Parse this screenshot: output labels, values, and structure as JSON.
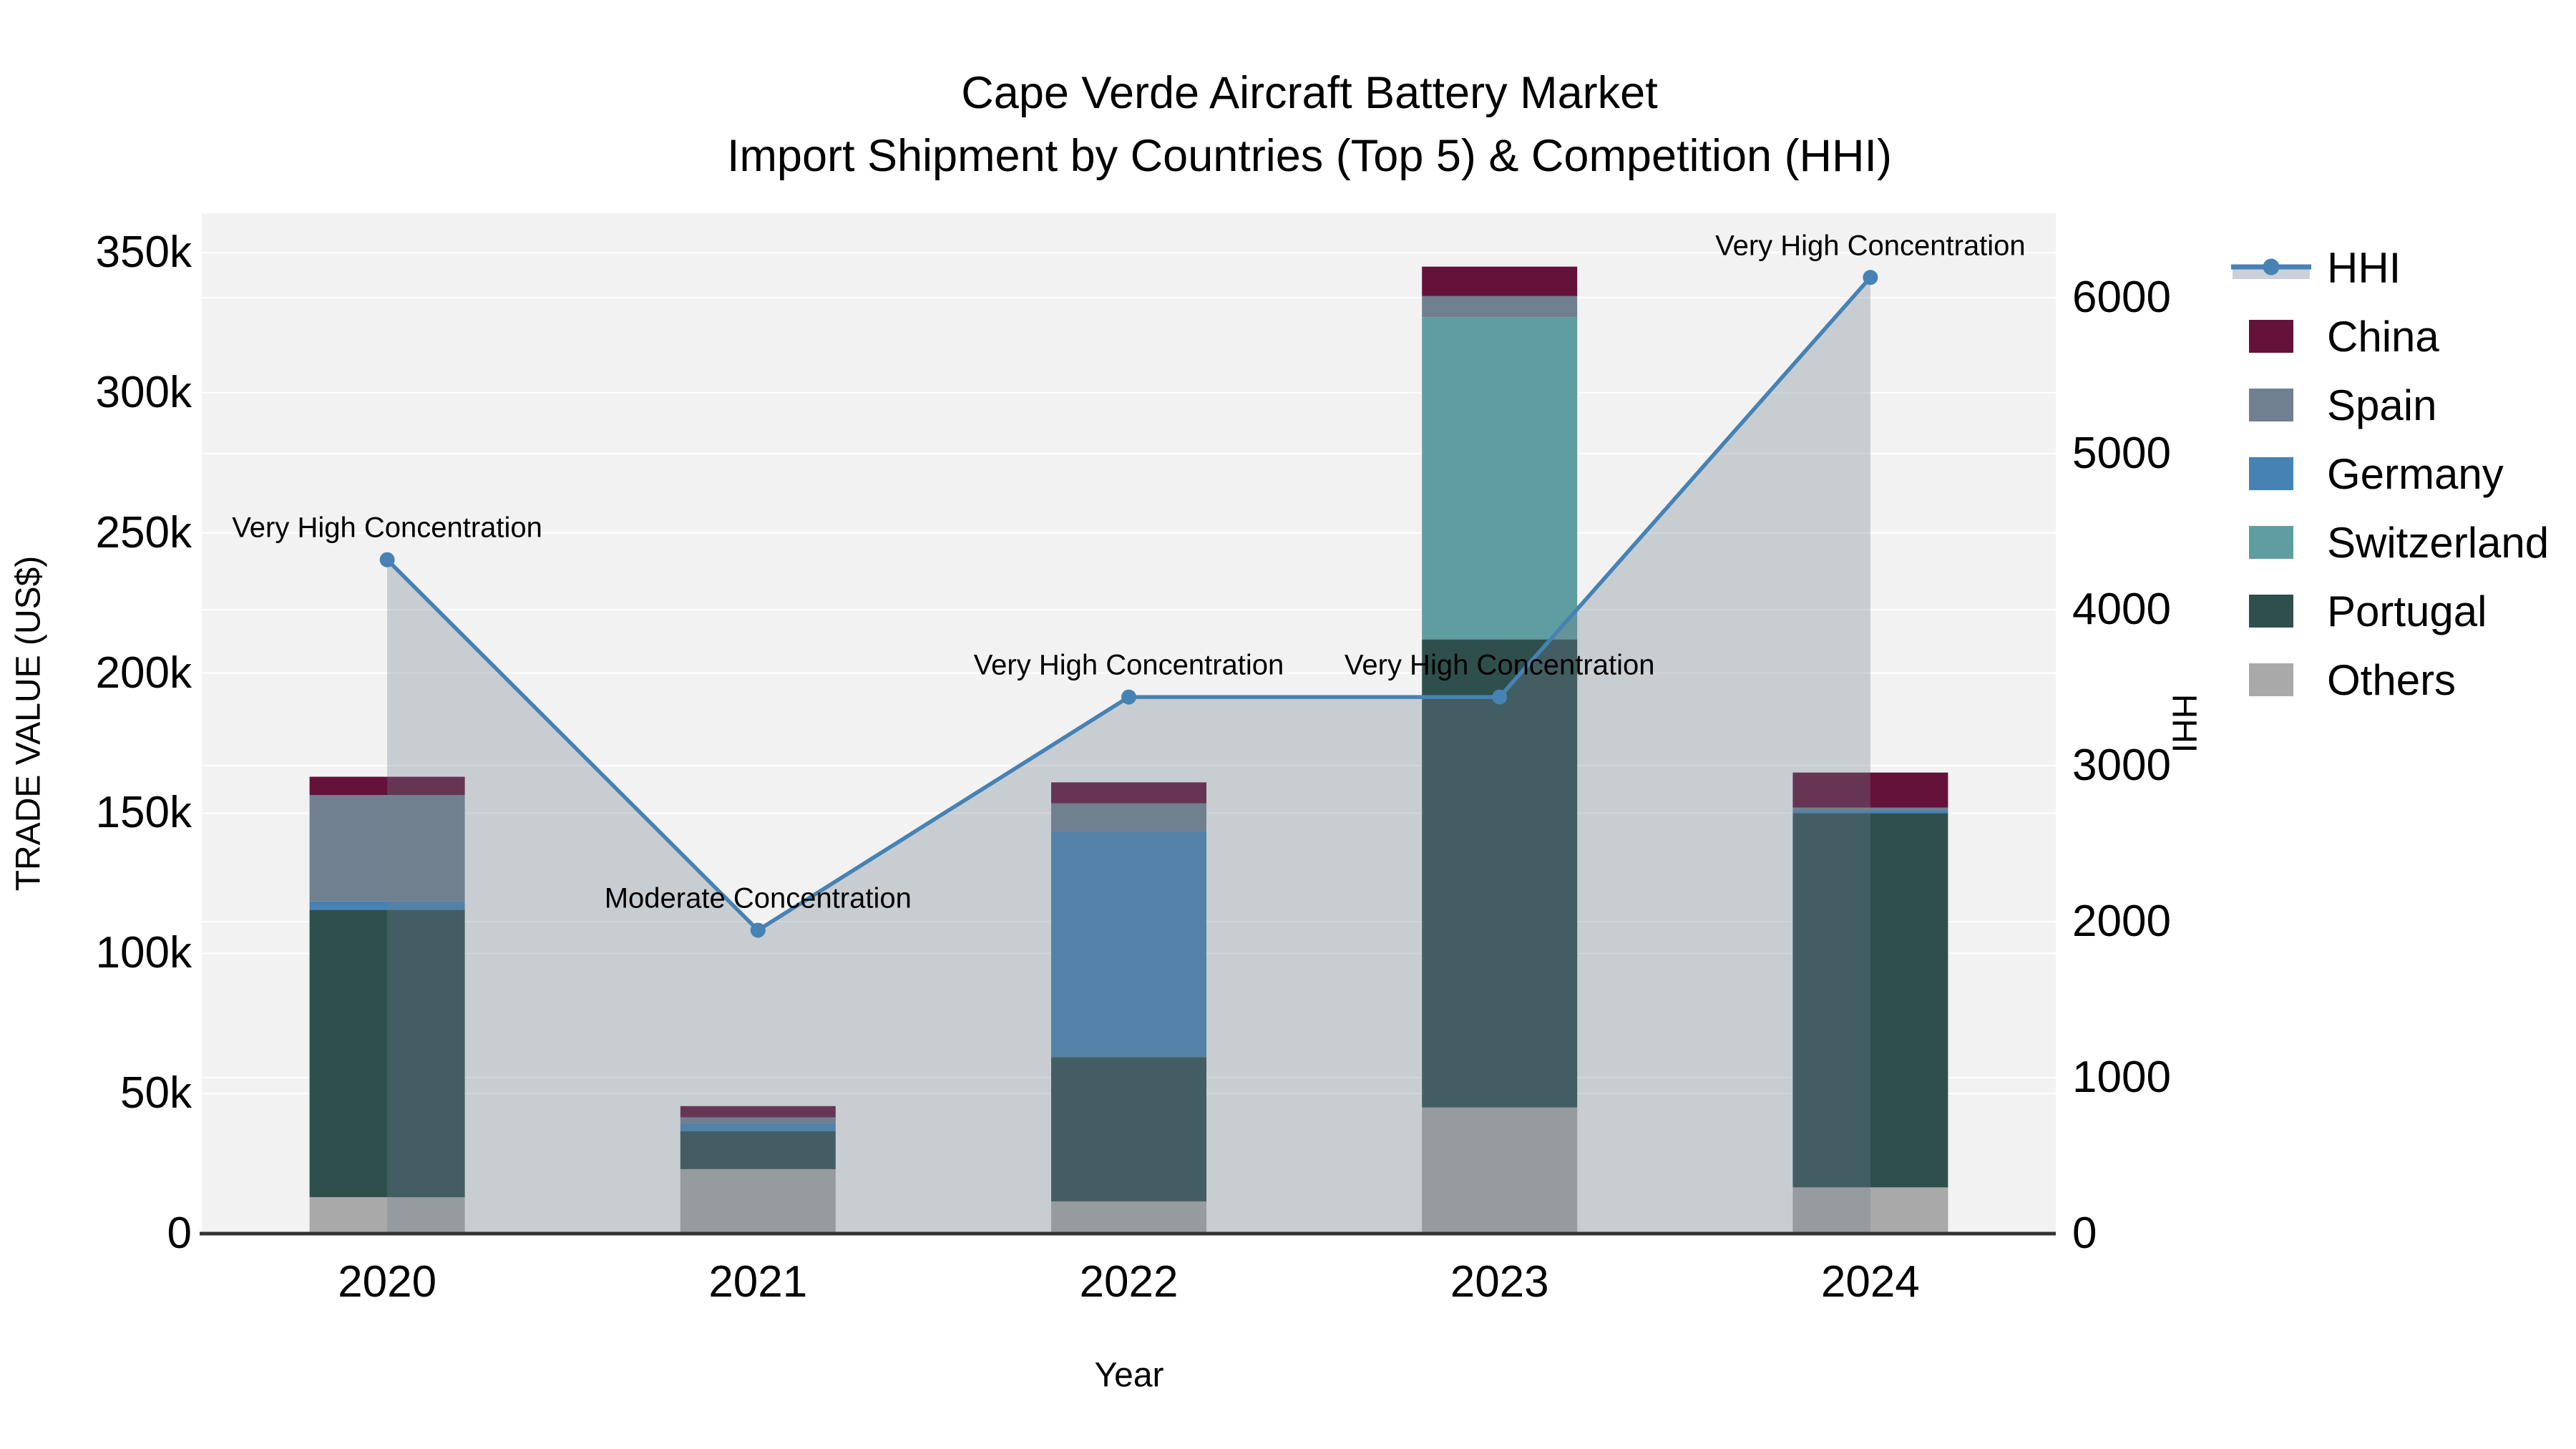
{
  "title": {
    "line1": "Cape Verde Aircraft Battery Market",
    "line2": "Import Shipment by Countries (Top 5) & Competition (HHI)"
  },
  "axes": {
    "x": {
      "title": "Year",
      "ticks": [
        "2020",
        "2021",
        "2022",
        "2023",
        "2024"
      ]
    },
    "y_left": {
      "title": "TRADE VALUE (US$)",
      "ticks": [
        "0",
        "50k",
        "100k",
        "150k",
        "200k",
        "250k",
        "300k",
        "350k"
      ],
      "tick_values": [
        0,
        50000,
        100000,
        150000,
        200000,
        250000,
        300000,
        350000
      ]
    },
    "y_right": {
      "title": "HHI",
      "ticks": [
        "0",
        "1000",
        "2000",
        "3000",
        "4000",
        "5000",
        "6000"
      ],
      "tick_values": [
        0,
        1000,
        2000,
        3000,
        4000,
        5000,
        6000
      ]
    }
  },
  "legend": {
    "items": [
      {
        "label": "HHI",
        "type": "line",
        "color": "#4682b4"
      },
      {
        "label": "China",
        "type": "swatch",
        "color": "#641239"
      },
      {
        "label": "Spain",
        "type": "swatch",
        "color": "#708090"
      },
      {
        "label": "Germany",
        "type": "swatch",
        "color": "#4682b4"
      },
      {
        "label": "Switzerland",
        "type": "swatch",
        "color": "#5f9ea0"
      },
      {
        "label": "Portugal",
        "type": "swatch",
        "color": "#2f4f4d"
      },
      {
        "label": "Others",
        "type": "swatch",
        "color": "#a9a9a9"
      }
    ]
  },
  "annotations": [
    {
      "year": "2020",
      "text": "Very High Concentration"
    },
    {
      "year": "2021",
      "text": "Moderate Concentration"
    },
    {
      "year": "2022",
      "text": "Very High Concentration"
    },
    {
      "year": "2023",
      "text": "Very High Concentration"
    },
    {
      "year": "2024",
      "text": "Very High Concentration"
    }
  ],
  "chart_data": {
    "type": "combo-stacked-bar-line",
    "title": "Cape Verde Aircraft Battery Market — Import Shipment by Countries (Top 5) & Competition (HHI)",
    "categories": [
      "2020",
      "2021",
      "2022",
      "2023",
      "2024"
    ],
    "bar_value_unit": "US$",
    "bar_stack_order_bottom_to_top": [
      "Others",
      "Portugal",
      "Switzerland",
      "Germany",
      "Spain",
      "China"
    ],
    "bar_series": [
      {
        "name": "Others",
        "color": "#a9a9a9",
        "values": [
          13000,
          23000,
          11500,
          45000,
          16500
        ]
      },
      {
        "name": "Portugal",
        "color": "#2f4f4d",
        "values": [
          102500,
          13500,
          51500,
          167000,
          133500
        ]
      },
      {
        "name": "Switzerland",
        "color": "#5f9ea0",
        "values": [
          0,
          0,
          0,
          115000,
          0
        ]
      },
      {
        "name": "Germany",
        "color": "#4682b4",
        "values": [
          3000,
          3000,
          80500,
          0,
          1000
        ]
      },
      {
        "name": "Spain",
        "color": "#708090",
        "values": [
          38000,
          2000,
          10000,
          7500,
          1000
        ]
      },
      {
        "name": "China",
        "color": "#641239",
        "values": [
          6500,
          4000,
          7500,
          10500,
          12500
        ]
      }
    ],
    "bar_totals": [
      163000,
      45500,
      160500,
      345000,
      164500
    ],
    "line_series": {
      "name": "HHI",
      "axis": "right",
      "color": "#4682b4",
      "fill_color": "rgba(112,128,144,0.32)",
      "values": [
        4320,
        1945,
        3440,
        3440,
        6130
      ]
    },
    "xlabel": "Year",
    "ylabel_left": "TRADE VALUE (US$)",
    "ylabel_right": "HHI",
    "ylim_left": [
      0,
      364000
    ],
    "ylim_right": [
      0,
      6540
    ],
    "grid": true,
    "legend_position": "right"
  },
  "style": {
    "plot_bg": "#f2f2f2",
    "grid_color": "#ffffff",
    "axis_line_color": "#323232",
    "text_color": "#000000",
    "legend_band_color": "#c9d0d9"
  }
}
